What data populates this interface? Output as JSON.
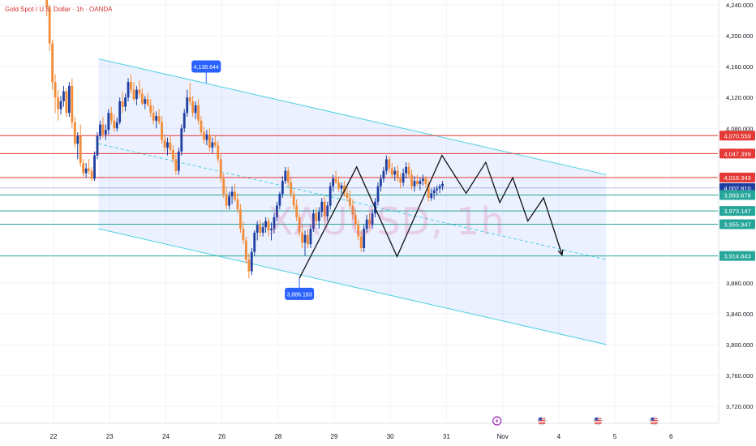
{
  "header": {
    "symbol": "Gold Spot / U.S. Dollar · 1h · OANDA"
  },
  "watermark": "XAUUSD, 1h",
  "chart_data": {
    "type": "candlestick",
    "title": "Gold Spot / U.S. Dollar · 1h · OANDA",
    "ylim": [
      3700,
      4250
    ],
    "y_ticks": [
      "4,240.000",
      "4,200.000",
      "4,160.000",
      "4,120.000",
      "4,080.000",
      "3,880.000",
      "3,840.000",
      "3,800.000",
      "3,760.000",
      "3,720.000"
    ],
    "y_tick_values": [
      4240,
      4200,
      4160,
      4120,
      4080,
      3880,
      3840,
      3800,
      3760,
      3720
    ],
    "x_ticks": [
      "22",
      "23",
      "24",
      "26",
      "28",
      "29",
      "30",
      "31",
      "Nov",
      "4",
      "5",
      "6"
    ],
    "x_tick_positions": [
      0,
      1,
      2,
      3,
      4,
      5,
      6,
      7,
      8,
      9,
      10,
      11
    ],
    "grid": true,
    "colors": {
      "up": "#1e3fa0",
      "down": "#f28c38",
      "channel": "#4dd0e1",
      "red_level": "#e53935",
      "green_level": "#26a69a",
      "callout": "#2962ff"
    },
    "levels": [
      {
        "price": 4070.559,
        "label": "4,070.559",
        "color": "#e53935"
      },
      {
        "price": 4047.399,
        "label": "4,047.399",
        "color": "#e53935"
      },
      {
        "price": 4016.343,
        "label": "4,016.343",
        "color": "#e53935"
      },
      {
        "price": 4002.81,
        "label": "4,002.810",
        "color": "#1e3fa0"
      },
      {
        "price": 3993.676,
        "label": "3,993.676",
        "color": "#26a69a"
      },
      {
        "price": 3973.147,
        "label": "3,973.147",
        "color": "#26a69a"
      },
      {
        "price": 3955.947,
        "label": "3,955.947",
        "color": "#26a69a"
      },
      {
        "price": 3914.843,
        "label": "3,914.843",
        "color": "#26a69a"
      }
    ],
    "annotations": [
      {
        "label": "4,138.644",
        "x": 2.72,
        "y": 4138.644
      },
      {
        "label": "3,886.183",
        "x": 4.38,
        "y": 3886.183
      }
    ],
    "channel": {
      "upper": [
        [
          0.8,
          4170
        ],
        [
          9.85,
          4020
        ]
      ],
      "lower": [
        [
          0.8,
          3950
        ],
        [
          9.85,
          3800
        ]
      ]
    },
    "midline": [
      [
        0.8,
        4060
      ],
      [
        9.85,
        3910
      ]
    ],
    "zigzag": [
      [
        4.38,
        3886
      ],
      [
        5.4,
        4030
      ],
      [
        6.12,
        3914
      ],
      [
        6.92,
        4045
      ],
      [
        7.35,
        3996
      ],
      [
        7.7,
        4036
      ],
      [
        7.95,
        3984
      ],
      [
        8.18,
        4016
      ],
      [
        8.45,
        3960
      ],
      [
        8.73,
        3990
      ],
      [
        9.06,
        3916
      ]
    ],
    "event_icons": [
      7.9,
      8.7,
      9.7,
      10.7
    ],
    "candles": [
      [
        -0.12,
        4300,
        4310,
        4225,
        4237
      ],
      [
        -0.07,
        4237,
        4240,
        4180,
        4190
      ],
      [
        -0.02,
        4190,
        4195,
        4130,
        4140
      ],
      [
        0.03,
        4140,
        4150,
        4100,
        4120
      ],
      [
        0.08,
        4120,
        4130,
        4090,
        4105
      ],
      [
        0.13,
        4105,
        4122,
        4098,
        4115
      ],
      [
        0.18,
        4115,
        4135,
        4108,
        4128
      ],
      [
        0.23,
        4128,
        4132,
        4095,
        4100
      ],
      [
        0.28,
        4100,
        4140,
        4095,
        4135
      ],
      [
        0.33,
        4135,
        4145,
        4080,
        4088
      ],
      [
        0.38,
        4088,
        4095,
        4055,
        4060
      ],
      [
        0.43,
        4060,
        4075,
        4040,
        4070
      ],
      [
        0.48,
        4070,
        4085,
        4030,
        4035
      ],
      [
        0.53,
        4035,
        4040,
        4018,
        4022
      ],
      [
        0.58,
        4022,
        4035,
        4016,
        4028
      ],
      [
        0.63,
        4028,
        4040,
        4020,
        4025
      ],
      [
        0.68,
        4025,
        4030,
        4012,
        4015
      ],
      [
        0.73,
        4015,
        4050,
        4012,
        4045
      ],
      [
        0.78,
        4045,
        4075,
        4040,
        4070
      ],
      [
        0.83,
        4070,
        4090,
        4065,
        4085
      ],
      [
        0.88,
        4085,
        4095,
        4068,
        4072
      ],
      [
        0.93,
        4072,
        4085,
        4065,
        4078
      ],
      [
        0.98,
        4078,
        4105,
        4072,
        4100
      ],
      [
        1.03,
        4100,
        4108,
        4085,
        4090
      ],
      [
        1.08,
        4090,
        4098,
        4075,
        4080
      ],
      [
        1.13,
        4080,
        4094,
        4076,
        4088
      ],
      [
        1.18,
        4088,
        4120,
        4085,
        4115
      ],
      [
        1.23,
        4115,
        4128,
        4100,
        4108
      ],
      [
        1.28,
        4108,
        4125,
        4102,
        4120
      ],
      [
        1.33,
        4120,
        4145,
        4115,
        4140
      ],
      [
        1.38,
        4140,
        4150,
        4125,
        4130
      ],
      [
        1.43,
        4130,
        4140,
        4115,
        4118
      ],
      [
        1.48,
        4118,
        4135,
        4110,
        4130
      ],
      [
        1.53,
        4130,
        4142,
        4120,
        4125
      ],
      [
        1.58,
        4125,
        4132,
        4110,
        4112
      ],
      [
        1.63,
        4112,
        4122,
        4105,
        4118
      ],
      [
        1.68,
        4118,
        4126,
        4108,
        4110
      ],
      [
        1.73,
        4110,
        4118,
        4095,
        4100
      ],
      [
        1.78,
        4100,
        4110,
        4085,
        4090
      ],
      [
        1.83,
        4090,
        4102,
        4080,
        4096
      ],
      [
        1.88,
        4096,
        4105,
        4085,
        4088
      ],
      [
        1.93,
        4088,
        4096,
        4060,
        4065
      ],
      [
        1.98,
        4065,
        4072,
        4050,
        4055
      ],
      [
        2.03,
        4055,
        4068,
        4045,
        4062
      ],
      [
        2.08,
        4062,
        4070,
        4048,
        4052
      ],
      [
        2.13,
        4052,
        4058,
        4035,
        4040
      ],
      [
        2.18,
        4040,
        4048,
        4020,
        4025
      ],
      [
        2.23,
        4025,
        4055,
        4020,
        4050
      ],
      [
        2.28,
        4050,
        4085,
        4045,
        4080
      ],
      [
        2.33,
        4080,
        4105,
        4075,
        4100
      ],
      [
        2.38,
        4100,
        4130,
        4095,
        4120
      ],
      [
        2.43,
        4120,
        4139,
        4110,
        4115
      ],
      [
        2.48,
        4115,
        4122,
        4095,
        4100
      ],
      [
        2.53,
        4100,
        4115,
        4092,
        4110
      ],
      [
        2.58,
        4110,
        4118,
        4085,
        4090
      ],
      [
        2.63,
        4090,
        4096,
        4070,
        4075
      ],
      [
        2.68,
        4075,
        4082,
        4060,
        4065
      ],
      [
        2.73,
        4065,
        4078,
        4058,
        4072
      ],
      [
        2.78,
        4072,
        4080,
        4050,
        4055
      ],
      [
        2.83,
        4055,
        4068,
        4048,
        4062
      ],
      [
        2.88,
        4062,
        4070,
        4055,
        4058
      ],
      [
        2.93,
        4058,
        4064,
        4035,
        4040
      ],
      [
        2.98,
        4040,
        4048,
        4010,
        4015
      ],
      [
        3.03,
        4015,
        4022,
        3990,
        3995
      ],
      [
        3.08,
        3995,
        4005,
        3975,
        3980
      ],
      [
        3.13,
        3980,
        3998,
        3975,
        3992
      ],
      [
        3.18,
        3992,
        4005,
        3982,
        3998
      ],
      [
        3.23,
        3998,
        4008,
        3985,
        3988
      ],
      [
        3.28,
        3988,
        3996,
        3970,
        3975
      ],
      [
        3.33,
        3975,
        3982,
        3945,
        3950
      ],
      [
        3.38,
        3950,
        3960,
        3930,
        3935
      ],
      [
        3.43,
        3935,
        3940,
        3905,
        3910
      ],
      [
        3.48,
        3910,
        3918,
        3886,
        3895
      ],
      [
        3.53,
        3895,
        3925,
        3890,
        3920
      ],
      [
        3.58,
        3920,
        3948,
        3915,
        3945
      ],
      [
        3.63,
        3945,
        3960,
        3935,
        3955
      ],
      [
        3.68,
        3955,
        3962,
        3940,
        3945
      ],
      [
        3.73,
        3945,
        3958,
        3940,
        3952
      ],
      [
        3.78,
        3952,
        3965,
        3945,
        3960
      ],
      [
        3.83,
        3960,
        3964,
        3940,
        3948
      ],
      [
        3.88,
        3948,
        3958,
        3935,
        3950
      ],
      [
        3.93,
        3950,
        3970,
        3944,
        3965
      ],
      [
        3.98,
        3965,
        3985,
        3960,
        3980
      ],
      [
        4.03,
        3980,
        3998,
        3975,
        3995
      ],
      [
        4.08,
        3995,
        4018,
        3990,
        4012
      ],
      [
        4.13,
        4012,
        4030,
        4008,
        4025
      ],
      [
        4.18,
        4025,
        4030,
        4005,
        4010
      ],
      [
        4.23,
        4010,
        4016,
        3990,
        3995
      ],
      [
        4.28,
        3995,
        4000,
        3975,
        3980
      ],
      [
        4.33,
        3980,
        3988,
        3960,
        3965
      ],
      [
        4.38,
        3965,
        3970,
        3940,
        3945
      ],
      [
        4.43,
        3945,
        3955,
        3925,
        3932
      ],
      [
        4.48,
        3932,
        3948,
        3915,
        3942
      ],
      [
        4.53,
        3942,
        3950,
        3925,
        3930
      ],
      [
        4.58,
        3930,
        3955,
        3925,
        3950
      ],
      [
        4.63,
        3950,
        3975,
        3946,
        3970
      ],
      [
        4.68,
        3970,
        3978,
        3955,
        3960
      ],
      [
        4.73,
        3960,
        3978,
        3950,
        3972
      ],
      [
        4.78,
        3972,
        3990,
        3965,
        3985
      ],
      [
        4.83,
        3985,
        3992,
        3960,
        3966
      ],
      [
        4.88,
        3966,
        3985,
        3960,
        3980
      ],
      [
        4.93,
        3980,
        4010,
        3975,
        4005
      ],
      [
        4.98,
        4005,
        4020,
        3998,
        4015
      ],
      [
        5.03,
        4015,
        4025,
        4008,
        4010
      ],
      [
        5.08,
        4010,
        4018,
        3998,
        4002
      ],
      [
        5.13,
        4002,
        4010,
        3995,
        4006
      ],
      [
        5.18,
        4006,
        4012,
        3992,
        3996
      ],
      [
        5.23,
        3996,
        4004,
        3985,
        3990
      ],
      [
        5.28,
        3990,
        4000,
        3975,
        3980
      ],
      [
        5.33,
        3980,
        3988,
        3962,
        3968
      ],
      [
        5.38,
        3968,
        3975,
        3950,
        3955
      ],
      [
        5.43,
        3955,
        3962,
        3935,
        3940
      ],
      [
        5.48,
        3940,
        3948,
        3920,
        3925
      ],
      [
        5.53,
        3925,
        3955,
        3920,
        3950
      ],
      [
        5.58,
        3950,
        3968,
        3945,
        3962
      ],
      [
        5.63,
        3962,
        3970,
        3950,
        3955
      ],
      [
        5.68,
        3955,
        3975,
        3950,
        3970
      ],
      [
        5.73,
        3970,
        3990,
        3965,
        3985
      ],
      [
        5.78,
        3985,
        4010,
        3980,
        4005
      ],
      [
        5.83,
        4005,
        4020,
        3998,
        4015
      ],
      [
        5.88,
        4015,
        4030,
        4010,
        4025
      ],
      [
        5.93,
        4025,
        4045,
        4020,
        4040
      ],
      [
        5.98,
        4040,
        4044,
        4022,
        4028
      ],
      [
        6.03,
        4028,
        4035,
        4015,
        4020
      ],
      [
        6.08,
        4020,
        4030,
        4012,
        4025
      ],
      [
        6.13,
        4025,
        4032,
        4010,
        4015
      ],
      [
        6.18,
        4015,
        4022,
        4002,
        4010
      ],
      [
        6.23,
        4010,
        4028,
        4005,
        4022
      ],
      [
        6.28,
        4022,
        4036,
        4015,
        4030
      ],
      [
        6.33,
        4030,
        4036,
        4015,
        4020
      ],
      [
        6.38,
        4020,
        4026,
        4000,
        4005
      ],
      [
        6.43,
        4005,
        4018,
        3998,
        4012
      ],
      [
        6.48,
        4012,
        4020,
        4005,
        4008
      ],
      [
        6.53,
        4008,
        4016,
        4000,
        4012
      ],
      [
        6.58,
        4012,
        4020,
        4006,
        4015
      ],
      [
        6.63,
        4015,
        4018,
        4004,
        4008
      ],
      [
        6.68,
        4008,
        4014,
        3985,
        3990
      ],
      [
        6.73,
        3990,
        4002,
        3986,
        3996
      ],
      [
        6.78,
        3996,
        4004,
        3988,
        4000
      ],
      [
        6.83,
        4000,
        4006,
        3994,
        4002
      ],
      [
        6.88,
        4002,
        4008,
        3996,
        4005
      ],
      [
        6.93,
        4005,
        4012,
        4000,
        4008
      ]
    ]
  }
}
